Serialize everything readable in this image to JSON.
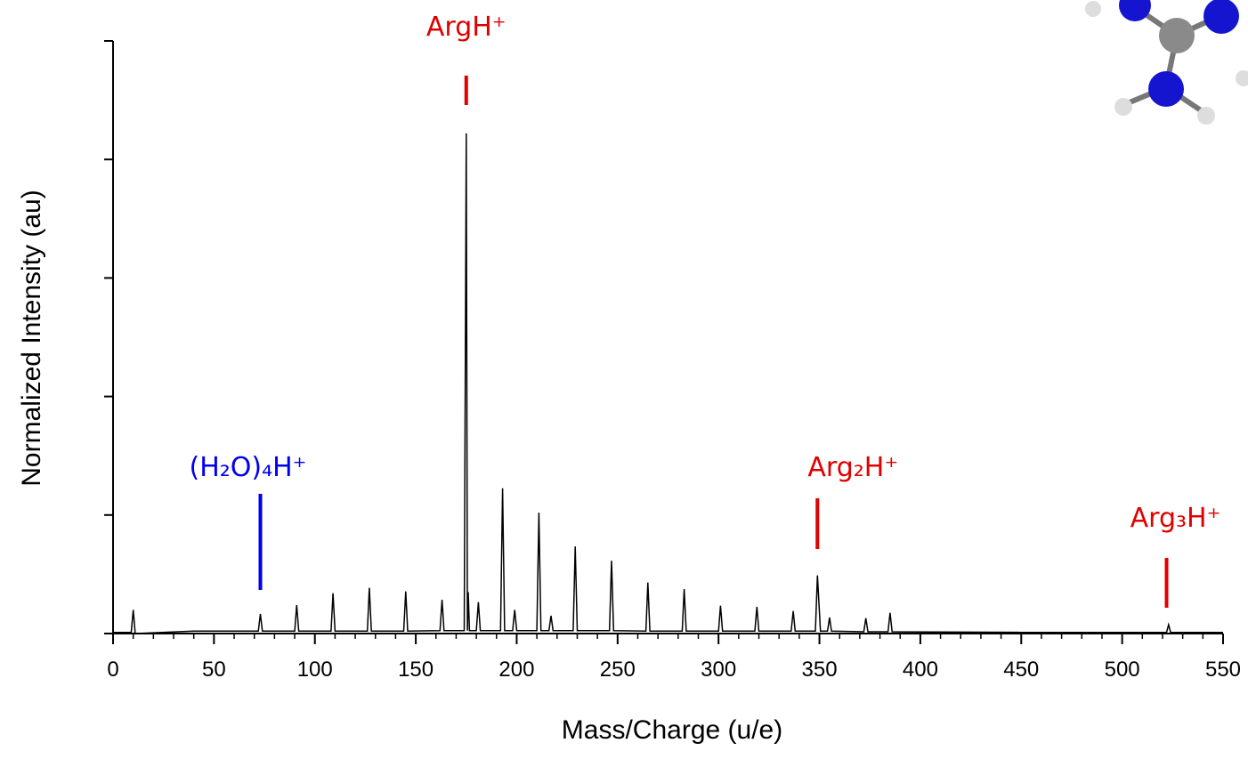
{
  "chart_data": {
    "type": "line",
    "xlabel": "Mass/Charge (u/e)",
    "ylabel": "Normalized Intensity (au)",
    "xlim": [
      0,
      550
    ],
    "xticks": [
      0,
      50,
      100,
      150,
      200,
      250,
      300,
      350,
      400,
      450,
      500,
      550
    ],
    "ylim": [
      0,
      1
    ],
    "yticks": [
      0,
      0.2,
      0.4,
      0.6,
      0.8,
      1
    ],
    "series": [
      {
        "color": "#000000",
        "x": [
          0,
          9,
          10,
          11,
          40,
          72,
          73,
          74,
          90,
          91,
          92,
          108,
          109,
          110,
          126,
          127,
          128,
          144,
          145,
          146,
          162,
          163,
          164,
          174,
          175,
          175.6,
          176,
          176.6,
          180,
          181,
          182,
          192,
          193,
          194,
          198,
          199,
          200,
          210,
          211,
          212,
          216,
          217,
          218,
          228,
          229,
          230,
          246,
          247,
          248,
          264,
          265,
          266,
          282,
          283,
          284,
          300,
          301,
          302,
          318,
          319,
          320,
          336,
          337,
          338,
          348,
          349,
          350.5,
          354,
          355,
          356,
          372,
          373,
          374,
          384,
          385,
          386,
          450,
          522,
          523,
          524,
          550
        ],
        "values": [
          0.002,
          0.002,
          0.04,
          0.0,
          0.004,
          0.004,
          0.033,
          0.004,
          0.004,
          0.048,
          0.004,
          0.004,
          0.068,
          0.004,
          0.004,
          0.077,
          0.004,
          0.004,
          0.071,
          0.004,
          0.005,
          0.057,
          0.005,
          0.005,
          0.844,
          0.005,
          0.07,
          0.005,
          0.005,
          0.053,
          0.005,
          0.005,
          0.245,
          0.005,
          0.005,
          0.04,
          0.005,
          0.005,
          0.204,
          0.005,
          0.005,
          0.03,
          0.005,
          0.005,
          0.147,
          0.005,
          0.005,
          0.123,
          0.005,
          0.004,
          0.086,
          0.004,
          0.004,
          0.075,
          0.004,
          0.004,
          0.047,
          0.004,
          0.004,
          0.045,
          0.004,
          0.004,
          0.038,
          0.004,
          0.004,
          0.098,
          0.004,
          0.004,
          0.027,
          0.004,
          0.003,
          0.026,
          0.003,
          0.003,
          0.035,
          0.003,
          0.002,
          0.002,
          0.015,
          0.002,
          0.002
        ]
      }
    ],
    "annotations": [
      {
        "text": "ArgH⁺",
        "x": 175,
        "color": "#e00000"
      },
      {
        "text": "(H₂O)₄H⁺",
        "x": 73,
        "color": "#0000ee"
      },
      {
        "text": "Arg₂H⁺",
        "x": 349,
        "color": "#e00000"
      },
      {
        "text": "Arg₃H⁺",
        "x": 522,
        "color": "#e00000"
      }
    ]
  }
}
